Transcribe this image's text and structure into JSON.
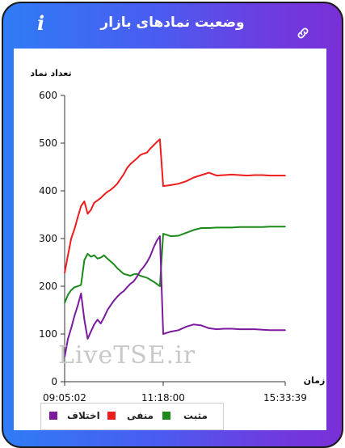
{
  "header": {
    "title": "وضعیت نمادهای بازار",
    "info_icon": "i",
    "link_icon_name": "link-icon"
  },
  "watermark": "LiveTSE.ir",
  "chart_data": {
    "type": "line",
    "title": "",
    "ylabel": "تعداد نماد",
    "xlabel": "زمان",
    "ylim": [
      0,
      600
    ],
    "yticks": [
      0,
      100,
      200,
      300,
      400,
      500,
      600
    ],
    "xticks": [
      "09:05:02",
      "11:18:00",
      "15:33:39"
    ],
    "x": [
      "09:05:02",
      "09:07",
      "09:10",
      "09:13",
      "09:15",
      "09:20",
      "09:25",
      "09:30",
      "09:35",
      "09:40",
      "09:45",
      "09:50",
      "09:55",
      "10:00",
      "10:05",
      "10:10",
      "10:15",
      "10:20",
      "10:25",
      "10:30",
      "10:35",
      "10:40",
      "10:45",
      "10:50",
      "10:55",
      "11:00",
      "11:05",
      "11:10",
      "11:15",
      "11:17",
      "11:18:00",
      "11:20",
      "11:25",
      "11:30",
      "11:35",
      "11:40",
      "11:45",
      "11:50",
      "12:00",
      "12:15",
      "12:30",
      "13:00",
      "13:30",
      "14:00",
      "14:30",
      "15:00",
      "15:33:39"
    ],
    "series": [
      {
        "name": "منفی",
        "color": "#ee1c1c",
        "values": [
          228,
          265,
          300,
          320,
          345,
          368,
          378,
          352,
          360,
          375,
          380,
          385,
          392,
          398,
          402,
          408,
          415,
          425,
          435,
          448,
          456,
          462,
          468,
          475,
          478,
          480,
          488,
          495,
          502,
          508,
          410,
          412,
          415,
          420,
          428,
          433,
          438,
          432,
          433,
          434,
          433,
          432,
          433,
          433,
          432,
          432,
          432
        ]
      },
      {
        "name": "مثبت",
        "color": "#1a8a1a",
        "values": [
          165,
          182,
          192,
          198,
          200,
          203,
          255,
          268,
          262,
          265,
          258,
          260,
          265,
          258,
          252,
          246,
          238,
          232,
          226,
          224,
          222,
          225,
          226,
          222,
          220,
          218,
          214,
          210,
          205,
          200,
          310,
          305,
          306,
          312,
          318,
          322,
          322,
          323,
          323,
          323,
          324,
          324,
          324,
          324,
          325,
          325,
          325
        ]
      },
      {
        "name": "اختلاف",
        "color": "#7b1a9e",
        "values": [
          52,
          90,
          112,
          138,
          160,
          185,
          130,
          90,
          105,
          120,
          130,
          122,
          135,
          150,
          160,
          170,
          178,
          185,
          190,
          198,
          205,
          210,
          220,
          232,
          240,
          250,
          262,
          280,
          295,
          305,
          100,
          105,
          108,
          115,
          120,
          118,
          112,
          110,
          111,
          111,
          110,
          110,
          110,
          109,
          108,
          108,
          108
        ]
      }
    ],
    "legend": {
      "placement": "bottom",
      "items": [
        {
          "label": "مثبت",
          "color": "#1a8a1a"
        },
        {
          "label": "منفی",
          "color": "#ee1c1c"
        },
        {
          "label": "اختلاف",
          "color": "#7b1a9e"
        }
      ]
    },
    "grid": false
  }
}
